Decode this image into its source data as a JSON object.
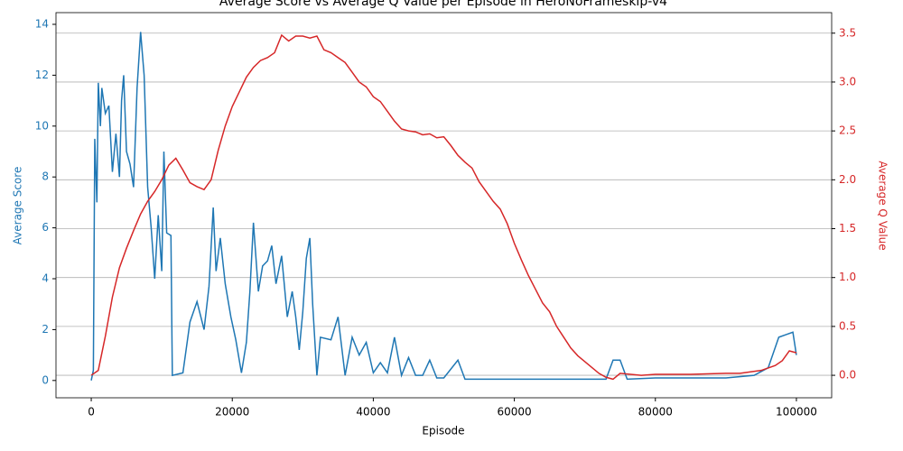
{
  "chart_data": {
    "type": "line",
    "title": "Average Score vs Average Q Value per Episode in HeroNoFrameskip-v4",
    "x_label": "Episode",
    "y_label": "Average Score",
    "y2_label": "Average Q Value",
    "xlim": [
      -5000,
      105000
    ],
    "xticks": [
      0,
      20000,
      40000,
      60000,
      80000,
      100000
    ],
    "ylim": [
      -0.68,
      14.46
    ],
    "yticks": [
      0,
      2,
      4,
      6,
      8,
      10,
      12,
      14
    ],
    "y2lim": [
      -0.23,
      3.71
    ],
    "y2ticks": [
      {
        "value": 0,
        "label": "0.0"
      },
      0.5,
      {
        "value": 1,
        "label": "1.0"
      },
      1.5,
      {
        "value": 2,
        "label": "2.0"
      },
      2.5,
      {
        "value": 3,
        "label": "3.0"
      },
      3.5
    ],
    "grid": "y2",
    "series": [
      {
        "name": "Average Score",
        "color": "#1f77b4",
        "axis": "y",
        "x": [
          0,
          300,
          500,
          800,
          1000,
          1300,
          1500,
          2000,
          2500,
          3000,
          3500,
          4000,
          4300,
          4600,
          5000,
          5500,
          6000,
          6500,
          7000,
          7500,
          8000,
          8500,
          9000,
          9500,
          10000,
          10300,
          10700,
          11300,
          11500,
          13000,
          14000,
          15000,
          16000,
          16700,
          17300,
          17700,
          18300,
          19000,
          19800,
          20500,
          21300,
          22000,
          22500,
          23000,
          23700,
          24300,
          25000,
          25600,
          26200,
          27000,
          27800,
          28500,
          29000,
          29500,
          30000,
          30500,
          31000,
          31400,
          32000,
          32500,
          34000,
          35000,
          36000,
          37000,
          38000,
          39000,
          40000,
          41000,
          42000,
          43000,
          44000,
          45000,
          46000,
          47000,
          48000,
          49000,
          50000,
          52000,
          53000,
          55000,
          60000,
          70000,
          73000,
          74000,
          75000,
          76000,
          80000,
          85000,
          88000,
          90000,
          94000,
          96000,
          97500,
          98500,
          99500,
          100000
        ],
        "values": [
          0,
          0.4,
          9.5,
          7,
          11.7,
          10,
          11.5,
          10.5,
          10.8,
          8.2,
          9.7,
          8,
          11,
          12,
          9,
          8.5,
          7.6,
          11.5,
          13.7,
          12,
          7.6,
          6,
          4,
          6.5,
          4.3,
          9,
          5.8,
          5.7,
          0.2,
          0.3,
          2.3,
          3.1,
          2,
          3.7,
          6.8,
          4.3,
          5.6,
          3.8,
          2.5,
          1.6,
          0.3,
          1.5,
          3.5,
          6.2,
          3.5,
          4.5,
          4.7,
          5.3,
          3.8,
          4.9,
          2.5,
          3.5,
          2.5,
          1.2,
          2.7,
          4.8,
          5.6,
          3,
          0.2,
          1.7,
          1.6,
          2.5,
          0.2,
          1.7,
          1,
          1.5,
          0.3,
          0.7,
          0.3,
          1.7,
          0.2,
          0.9,
          0.2,
          0.2,
          0.8,
          0.1,
          0.1,
          0.8,
          0.05,
          0.05,
          0.05,
          0.05,
          0.05,
          0.8,
          0.8,
          0.05,
          0.1,
          0.1,
          0.1,
          0.1,
          0.2,
          0.5,
          1.7,
          1.8,
          1.9,
          1
        ]
      },
      {
        "name": "Average Q Value",
        "color": "#d62728",
        "axis": "y2",
        "x": [
          0,
          1000,
          2000,
          3000,
          4000,
          5000,
          6000,
          7000,
          8000,
          9000,
          10000,
          11000,
          12000,
          13000,
          14000,
          15000,
          16000,
          17000,
          18000,
          19000,
          20000,
          21000,
          22000,
          23000,
          24000,
          25000,
          26000,
          27000,
          28000,
          29000,
          30000,
          31000,
          32000,
          33000,
          34000,
          35000,
          36000,
          37000,
          38000,
          39000,
          40000,
          41000,
          42000,
          43000,
          44000,
          45000,
          46000,
          47000,
          48000,
          49000,
          50000,
          51000,
          52000,
          53000,
          54000,
          55000,
          56000,
          57000,
          58000,
          59000,
          60000,
          61000,
          62000,
          63000,
          64000,
          65000,
          66000,
          67000,
          68000,
          69000,
          70000,
          71000,
          72000,
          73000,
          74000,
          75000,
          78000,
          80000,
          85000,
          90000,
          92000,
          95000,
          97000,
          98000,
          99000,
          100000
        ],
        "values": [
          0,
          0.05,
          0.4,
          0.8,
          1.1,
          1.3,
          1.48,
          1.65,
          1.78,
          1.88,
          2,
          2.15,
          2.22,
          2.1,
          1.97,
          1.93,
          1.9,
          2,
          2.3,
          2.55,
          2.75,
          2.9,
          3.05,
          3.15,
          3.22,
          3.25,
          3.3,
          3.48,
          3.42,
          3.47,
          3.47,
          3.45,
          3.47,
          3.33,
          3.3,
          3.25,
          3.2,
          3.1,
          3,
          2.95,
          2.85,
          2.8,
          2.7,
          2.6,
          2.52,
          2.5,
          2.49,
          2.46,
          2.47,
          2.43,
          2.44,
          2.35,
          2.25,
          2.18,
          2.12,
          1.98,
          1.88,
          1.78,
          1.7,
          1.55,
          1.35,
          1.18,
          1.02,
          0.88,
          0.74,
          0.65,
          0.5,
          0.39,
          0.28,
          0.2,
          0.14,
          0.08,
          0.02,
          -0.02,
          -0.04,
          0.02,
          0,
          0.01,
          0.01,
          0.02,
          0.02,
          0.05,
          0.1,
          0.15,
          0.25,
          0.23
        ]
      }
    ]
  }
}
